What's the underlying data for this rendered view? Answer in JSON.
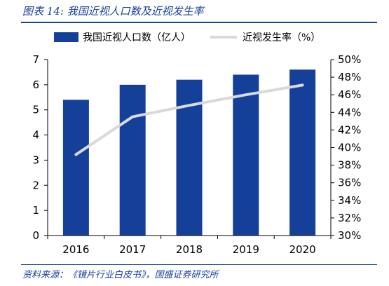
{
  "title": "图表 14:  我国近视人口数及近视发生率",
  "source": "资料来源：《镜片行业白皮书》，国盛证券研究所",
  "chart_data": {
    "type": "bar",
    "categories": [
      "2016",
      "2017",
      "2018",
      "2019",
      "2020"
    ],
    "series": [
      {
        "name": "我国近视人口数（亿人）",
        "type": "bar",
        "axis": "left",
        "color": "#14409a",
        "values": [
          5.4,
          6.0,
          6.2,
          6.4,
          6.6
        ]
      },
      {
        "name": "近视发生率（%）",
        "type": "line",
        "axis": "right",
        "color": "#d9d9d9",
        "values": [
          39.2,
          43.5,
          44.8,
          46.0,
          47.1
        ]
      }
    ],
    "y_left": {
      "ylim": [
        0,
        7
      ],
      "ticks": [
        "0",
        "1",
        "2",
        "3",
        "4",
        "5",
        "6",
        "7"
      ]
    },
    "y_right": {
      "ylim": [
        30,
        50
      ],
      "ticks": [
        "30%",
        "32%",
        "34%",
        "36%",
        "38%",
        "40%",
        "42%",
        "44%",
        "46%",
        "48%",
        "50%"
      ]
    },
    "legend": "top",
    "grid": false
  }
}
